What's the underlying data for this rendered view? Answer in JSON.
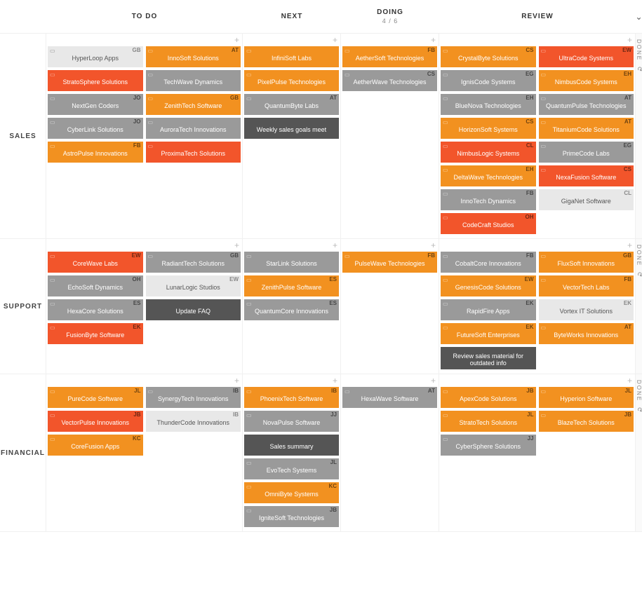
{
  "columns": [
    {
      "label": "TO DO"
    },
    {
      "label": "NEXT"
    },
    {
      "label": "DOING",
      "sub": "4 / 6"
    },
    {
      "label": "REVIEW"
    }
  ],
  "done_label": "DONE",
  "rows": [
    {
      "label": "SALES",
      "cells": [
        {
          "cols": [
            [
              {
                "text": "HyperLoop Apps",
                "color": "lightgray",
                "badge": "GB",
                "icon": true
              },
              {
                "text": "StratoSphere Solutions",
                "color": "red",
                "icon": true
              },
              {
                "text": "NextGen Coders",
                "color": "gray",
                "badge": "JO",
                "icon": true
              },
              {
                "text": "CyberLink Solutions",
                "color": "gray",
                "badge": "JO",
                "icon": true
              },
              {
                "text": "AstroPulse Innovations",
                "color": "orange",
                "badge": "FB",
                "icon": true
              }
            ],
            [
              {
                "text": "InnoSoft Solutions",
                "color": "orange",
                "badge": "AT",
                "icon": true
              },
              {
                "text": "TechWave Dynamics",
                "color": "gray",
                "icon": true
              },
              {
                "text": "ZenithTech Software",
                "color": "orange",
                "badge": "GB",
                "icon": true
              },
              {
                "text": "AuroraTech Innovations",
                "color": "gray",
                "icon": true
              },
              {
                "text": "ProximaTech Solutions",
                "color": "red",
                "icon": true
              }
            ]
          ]
        },
        {
          "cols": [
            [
              {
                "text": "InfiniSoft Labs",
                "color": "orange",
                "icon": true
              },
              {
                "text": "PixelPulse Technologies",
                "color": "orange",
                "icon": true
              },
              {
                "text": "QuantumByte Labs",
                "color": "gray",
                "badge": "AT",
                "icon": true
              },
              {
                "text": "Weekly sales goals meet",
                "color": "dark"
              }
            ]
          ]
        },
        {
          "cols": [
            [
              {
                "text": "AetherSoft Technologies",
                "color": "orange",
                "badge": "FB",
                "icon": true
              },
              {
                "text": "AetherWave Technologies",
                "color": "gray",
                "badge": "CS",
                "icon": true
              }
            ]
          ]
        },
        {
          "cols": [
            [
              {
                "text": "CrystalByte Solutions",
                "color": "orange",
                "badge": "CS",
                "icon": true
              },
              {
                "text": "IgnisCode Systems",
                "color": "gray",
                "badge": "EG",
                "icon": true
              },
              {
                "text": "BlueNova Technologies",
                "color": "gray",
                "badge": "EH",
                "icon": true
              },
              {
                "text": "HorizonSoft Systems",
                "color": "orange",
                "badge": "CS",
                "icon": true
              },
              {
                "text": "NimbusLogic Systems",
                "color": "red",
                "badge": "CL",
                "icon": true
              },
              {
                "text": "DeltaWave Technologies",
                "color": "orange",
                "badge": "EH",
                "icon": true
              },
              {
                "text": "InnoTech Dynamics",
                "color": "gray",
                "badge": "FB",
                "icon": true
              },
              {
                "text": "CodeCraft Studios",
                "color": "red",
                "badge": "OH",
                "icon": true
              }
            ],
            [
              {
                "text": "UltraCode Systems",
                "color": "red",
                "badge": "EW",
                "icon": true
              },
              {
                "text": "NimbusCode Systems",
                "color": "orange",
                "badge": "EH",
                "icon": true
              },
              {
                "text": "QuantumPulse Technologies",
                "color": "gray",
                "badge": "AT",
                "icon": true
              },
              {
                "text": "TitaniumCode Solutions",
                "color": "orange",
                "badge": "AT",
                "icon": true
              },
              {
                "text": "PrimeCode Labs",
                "color": "gray",
                "badge": "EG",
                "icon": true
              },
              {
                "text": "NexaFusion Software",
                "color": "red",
                "badge": "CS",
                "icon": true
              },
              {
                "text": "GigaNet Software",
                "color": "lightgray",
                "badge": "CL"
              }
            ]
          ]
        }
      ]
    },
    {
      "label": "SUPPORT",
      "cells": [
        {
          "cols": [
            [
              {
                "text": "CoreWave Labs",
                "color": "red",
                "badge": "EW",
                "icon": true
              },
              {
                "text": "EchoSoft Dynamics",
                "color": "gray",
                "badge": "OH",
                "icon": true
              },
              {
                "text": "HexaCore Solutions",
                "color": "gray",
                "badge": "ES",
                "icon": true
              },
              {
                "text": "FusionByte Software",
                "color": "red",
                "badge": "EK",
                "icon": true
              }
            ],
            [
              {
                "text": "RadiantTech Solutions",
                "color": "gray",
                "badge": "GB",
                "icon": true
              },
              {
                "text": "LunarLogic Studios",
                "color": "lightgray",
                "badge": "EW"
              },
              {
                "text": "Update FAQ",
                "color": "dark"
              }
            ]
          ]
        },
        {
          "cols": [
            [
              {
                "text": "StarLink Solutions",
                "color": "gray",
                "icon": true
              },
              {
                "text": "ZenithPulse Software",
                "color": "orange",
                "badge": "ES",
                "icon": true
              },
              {
                "text": "QuantumCore Innovations",
                "color": "gray",
                "badge": "ES",
                "icon": true
              }
            ]
          ]
        },
        {
          "cols": [
            [
              {
                "text": "PulseWave Technologies",
                "color": "orange",
                "badge": "FB",
                "icon": true
              }
            ]
          ]
        },
        {
          "cols": [
            [
              {
                "text": "CobaltCore Innovations",
                "color": "gray",
                "badge": "FB",
                "icon": true
              },
              {
                "text": "GenesisCode Solutions",
                "color": "orange",
                "badge": "EW",
                "icon": true
              },
              {
                "text": "RapidFire Apps",
                "color": "gray",
                "badge": "EK",
                "icon": true
              },
              {
                "text": "FutureSoft Enterprises",
                "color": "orange",
                "badge": "EK",
                "icon": true
              },
              {
                "text": "Review sales material for outdated info",
                "color": "dark"
              }
            ],
            [
              {
                "text": "FluxSoft Innovations",
                "color": "orange",
                "badge": "GB",
                "icon": true
              },
              {
                "text": "VectorTech Labs",
                "color": "orange",
                "badge": "FB",
                "icon": true
              },
              {
                "text": "Vortex IT Solutions",
                "color": "lightgray",
                "badge": "EK"
              },
              {
                "text": "ByteWorks Innovations",
                "color": "orange",
                "badge": "AT",
                "icon": true
              }
            ]
          ]
        }
      ]
    },
    {
      "label": "FINANCIAL",
      "cells": [
        {
          "cols": [
            [
              {
                "text": "PureCode Software",
                "color": "orange",
                "badge": "JL",
                "icon": true
              },
              {
                "text": "VectorPulse Innovations",
                "color": "red",
                "badge": "JB",
                "icon": true
              },
              {
                "text": "CoreFusion Apps",
                "color": "orange",
                "badge": "KC",
                "icon": true
              }
            ],
            [
              {
                "text": "SynergyTech Innovations",
                "color": "gray",
                "badge": "IB",
                "icon": true
              },
              {
                "text": "ThunderCode Innovations",
                "color": "lightgray",
                "badge": "IB"
              }
            ]
          ]
        },
        {
          "cols": [
            [
              {
                "text": "PhoenixTech Software",
                "color": "orange",
                "badge": "IB",
                "icon": true
              },
              {
                "text": "NovaPulse Software",
                "color": "gray",
                "badge": "JJ",
                "icon": true
              },
              {
                "text": "Sales summary",
                "color": "dark"
              },
              {
                "text": "EvoTech Systems",
                "color": "gray",
                "badge": "JL",
                "icon": true
              },
              {
                "text": "OmniByte Systems",
                "color": "orange",
                "badge": "KC",
                "icon": true
              },
              {
                "text": "IgniteSoft Technologies",
                "color": "gray",
                "badge": "JB",
                "icon": true
              }
            ]
          ]
        },
        {
          "cols": [
            [
              {
                "text": "HexaWave Software",
                "color": "gray",
                "badge": "AT",
                "icon": true
              }
            ]
          ]
        },
        {
          "cols": [
            [
              {
                "text": "ApexCode Solutions",
                "color": "orange",
                "badge": "JB",
                "icon": true
              },
              {
                "text": "StratoTech Solutions",
                "color": "orange",
                "badge": "JL",
                "icon": true
              },
              {
                "text": "CyberSphere Solutions",
                "color": "gray",
                "badge": "JJ",
                "icon": true
              }
            ],
            [
              {
                "text": "Hyperion Software",
                "color": "orange",
                "badge": "JL",
                "icon": true
              },
              {
                "text": "BlazeTech Solutions",
                "color": "orange",
                "badge": "JB",
                "icon": true
              }
            ]
          ]
        }
      ]
    }
  ]
}
